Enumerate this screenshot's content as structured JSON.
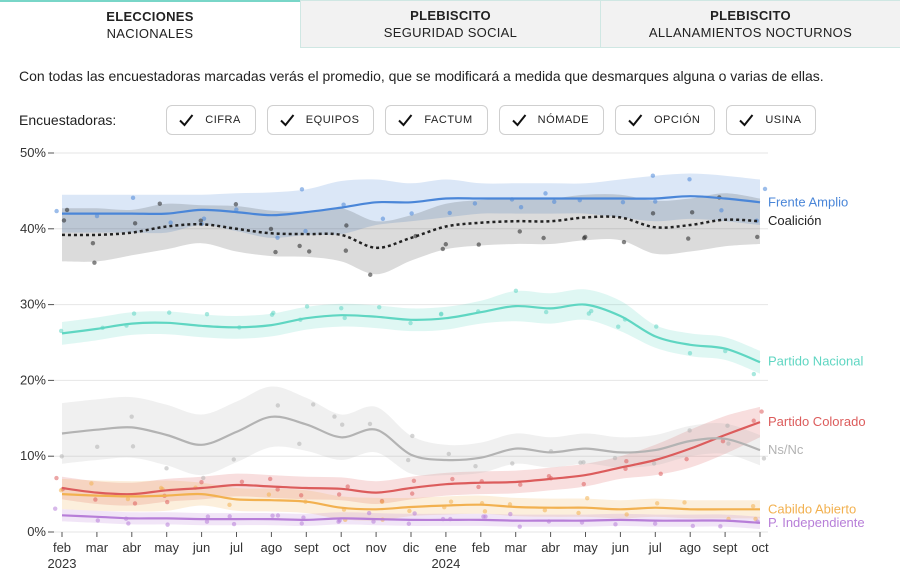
{
  "tabs": [
    {
      "line1": "ELECCIONES",
      "line2": "NACIONALES",
      "active": true
    },
    {
      "line1": "PLEBISCITO",
      "line2": "SEGURIDAD SOCIAL",
      "active": false
    },
    {
      "line1": "PLEBISCITO",
      "line2": "ALLANAMIENTOS NOCTURNOS",
      "active": false
    }
  ],
  "intro_text": "Con todas las encuestadoras marcadas verás el promedio, que se modificará a medida que desmarques alguna o varias de ellas.",
  "pollsters_label": "Encuestadoras:",
  "pollsters": [
    {
      "label": "CIFRA",
      "checked": true
    },
    {
      "label": "EQUIPOS",
      "checked": true
    },
    {
      "label": "FACTUM",
      "checked": true
    },
    {
      "label": "NÓMADE",
      "checked": true
    },
    {
      "label": "OPCIÓN",
      "checked": true
    },
    {
      "label": "USINA",
      "checked": true
    }
  ],
  "chart_data": {
    "type": "line",
    "x": [
      "feb 2023",
      "mar",
      "abr",
      "may",
      "jun",
      "jul",
      "ago",
      "sept",
      "oct",
      "nov",
      "dic",
      "ene 2024",
      "feb",
      "mar",
      "abr",
      "may",
      "jun",
      "jul",
      "ago",
      "sept",
      "oct"
    ],
    "x_ticks": [
      "feb",
      "mar",
      "abr",
      "may",
      "jun",
      "jul",
      "ago",
      "sept",
      "oct",
      "nov",
      "dic",
      "ene",
      "feb",
      "mar",
      "abr",
      "may",
      "jun",
      "jul",
      "ago",
      "sept",
      "oct"
    ],
    "x_year_labels": [
      {
        "index": 0,
        "label": "2023"
      },
      {
        "index": 11,
        "label": "2024"
      }
    ],
    "y_ticks": [
      "0%",
      "10%",
      "20%",
      "30%",
      "40%",
      "50%"
    ],
    "ylim": [
      0,
      50
    ],
    "grid": true,
    "series": [
      {
        "name": "Frente Amplio",
        "color": "#4a86d8",
        "dashed": false,
        "label_y": 43.5,
        "values": [
          42,
          42,
          42,
          42,
          42.5,
          42.2,
          41.8,
          42.2,
          42.8,
          43.5,
          43.5,
          44,
          44,
          44,
          44,
          44,
          44,
          44,
          44.3,
          44,
          43.5
        ],
        "band": [
          2.5,
          2.5,
          2.5,
          2.5,
          2,
          2.5,
          3,
          3,
          3.5,
          3,
          2.5,
          2.5,
          2,
          2,
          2,
          2,
          2.5,
          3,
          3,
          3,
          3
        ]
      },
      {
        "name": "Coalición",
        "color": "#222222",
        "dashed": true,
        "label_y": 41,
        "values": [
          39.2,
          39.2,
          39.5,
          40.3,
          40.6,
          40,
          39.4,
          39.3,
          39.2,
          37.5,
          38.8,
          40.3,
          40.8,
          41,
          41,
          41.5,
          41.5,
          40.2,
          40.5,
          41.2,
          41
        ],
        "band": [
          3.5,
          3.5,
          3,
          3,
          2.5,
          3,
          3,
          3,
          3.5,
          3.5,
          3,
          3,
          3,
          3,
          3,
          3,
          3,
          3.5,
          3.5,
          3.5,
          3
        ]
      },
      {
        "name": "Partido Nacional",
        "color": "#5fd6c2",
        "dashed": false,
        "label_y": 22.5,
        "values": [
          26.2,
          26.8,
          27.5,
          27.6,
          27.2,
          27,
          27.3,
          28.2,
          28.6,
          28.4,
          28,
          28.2,
          29,
          29.8,
          29.5,
          30,
          28.5,
          25.8,
          24.7,
          24.2,
          22.4
        ],
        "band": [
          1.5,
          1.5,
          1.5,
          1.5,
          1.5,
          1.5,
          1.5,
          1.5,
          1.5,
          1.5,
          1.5,
          1.5,
          1.5,
          2,
          2,
          2,
          2,
          1.5,
          1.5,
          1.5,
          1.5
        ]
      },
      {
        "name": "Partido Colorado",
        "color": "#dc5c5c",
        "dashed": false,
        "label_y": 14.5,
        "values": [
          5.8,
          5.2,
          5,
          5.5,
          5.8,
          6.2,
          6,
          5.8,
          5.7,
          5.2,
          5.8,
          6.3,
          6.5,
          6.6,
          7,
          7.5,
          8.5,
          9.5,
          11,
          12.8,
          14.5
        ],
        "band": [
          1.5,
          1.5,
          1.5,
          1.5,
          1.5,
          1.5,
          1.5,
          1.5,
          1.5,
          1.5,
          1.5,
          1.5,
          1.5,
          1.5,
          1.5,
          1.5,
          1.5,
          2,
          2.5,
          2.5,
          2
        ]
      },
      {
        "name": "Ns/Nc",
        "color": "#b3b3b3",
        "dashed": false,
        "label_y": 10.8,
        "values": [
          13,
          13.5,
          13.8,
          12.8,
          11.5,
          13.2,
          15.2,
          14.2,
          12.5,
          13.5,
          10.2,
          9.5,
          9.8,
          11,
          10.5,
          11,
          10.5,
          10.8,
          12,
          12.3,
          10.8
        ],
        "band": [
          4,
          4,
          4,
          4,
          4,
          4,
          4,
          3.5,
          3,
          3,
          2.5,
          2,
          2,
          2,
          2,
          2,
          2,
          2,
          2,
          2,
          2
        ]
      },
      {
        "name": "Cabildo Abierto",
        "color": "#f2b150",
        "dashed": false,
        "label_y": 3,
        "values": [
          5,
          4.8,
          4.7,
          4.8,
          5,
          4.3,
          4.2,
          4,
          3.2,
          3,
          3.3,
          3.5,
          3.6,
          3.3,
          3.2,
          3.2,
          3,
          3.2,
          3,
          3,
          3
        ],
        "band": [
          2,
          2,
          2,
          2,
          1.5,
          1.5,
          1.5,
          1.5,
          1.5,
          1.5,
          1.2,
          1.2,
          1.2,
          1.2,
          1.2,
          1.2,
          1.2,
          1.2,
          1.2,
          1.2,
          1.2
        ]
      },
      {
        "name": "P. Independiente",
        "color": "#b77ed8",
        "dashed": false,
        "label_y": 1.2,
        "values": [
          2.2,
          2,
          1.8,
          1.8,
          1.7,
          1.7,
          1.7,
          1.6,
          1.8,
          1.7,
          1.6,
          1.6,
          1.6,
          1.5,
          1.5,
          1.5,
          1.6,
          1.5,
          1.5,
          1.5,
          1.2
        ],
        "band": [
          0.8,
          0.8,
          0.8,
          0.8,
          0.8,
          0.8,
          0.8,
          0.8,
          0.8,
          0.8,
          0.8,
          0.8,
          0.8,
          0.8,
          0.8,
          0.8,
          0.8,
          0.8,
          0.8,
          0.8,
          0.8
        ]
      }
    ]
  }
}
